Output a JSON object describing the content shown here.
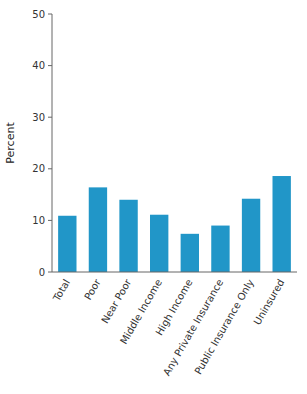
{
  "chart_data": {
    "type": "bar",
    "categories": [
      "Total",
      "Poor",
      "Near Poor",
      "Middle Income",
      "High Income",
      "Any Private Insurance",
      "Public Insurance Only",
      "Uninsured"
    ],
    "values": [
      10.9,
      16.4,
      14.0,
      11.1,
      7.4,
      9.0,
      14.2,
      18.6
    ],
    "color": "#2196c8",
    "ylabel": "Percent",
    "ylim": [
      0,
      50
    ],
    "yticks": [
      0,
      10,
      20,
      30,
      40,
      50
    ],
    "grid": false
  }
}
